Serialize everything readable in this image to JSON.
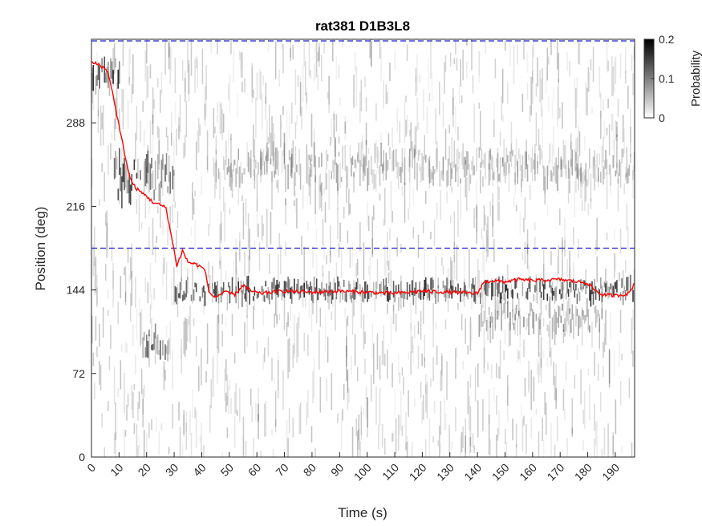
{
  "chart_data": {
    "type": "heatmap",
    "title": "rat381 D1B3L8",
    "xlabel": "Time (s)",
    "ylabel": "Position (deg)",
    "xlim": [
      0,
      197
    ],
    "ylim": [
      0,
      360
    ],
    "xticks": [
      0,
      10,
      20,
      30,
      40,
      50,
      60,
      70,
      80,
      90,
      100,
      110,
      120,
      130,
      140,
      150,
      160,
      170,
      180,
      190
    ],
    "yticks": [
      0,
      72,
      144,
      216,
      288
    ],
    "reference_lines": [
      {
        "y": 180,
        "style": "dashed",
        "color": "#1f1fd6"
      },
      {
        "y": 360,
        "style": "dashed",
        "color": "#1f1fd6"
      }
    ],
    "colorbar": {
      "label": "Probability",
      "ticks": [
        0,
        0.1,
        0.2
      ],
      "range": [
        0,
        0.2
      ],
      "colormap": "gray-reversed"
    },
    "series": [
      {
        "color": "#ff0000",
        "x": [
          0,
          3,
          6,
          8,
          10,
          12,
          14,
          16,
          18,
          20,
          22,
          24,
          27,
          29,
          31,
          33,
          35,
          38,
          41,
          43,
          45,
          48,
          52,
          55,
          58,
          61,
          65,
          70,
          80,
          90,
          100,
          110,
          120,
          130,
          140,
          142,
          145,
          150,
          155,
          160,
          170,
          180,
          182,
          185,
          190,
          195,
          197
        ],
        "y": [
          340,
          338,
          332,
          310,
          285,
          262,
          240,
          232,
          228,
          225,
          220,
          218,
          215,
          190,
          165,
          178,
          168,
          166,
          162,
          140,
          138,
          142,
          140,
          148,
          143,
          141,
          142,
          143,
          142,
          143,
          142,
          141,
          143,
          142,
          141,
          150,
          152,
          151,
          153,
          152,
          153,
          150,
          145,
          140,
          139,
          141,
          150
        ]
      }
    ],
    "heat_bands": [
      {
        "t0": 0,
        "t1": 10,
        "center": 330,
        "spread": 25,
        "intensity": 0.9
      },
      {
        "t0": 8,
        "t1": 30,
        "center": 240,
        "spread": 30,
        "intensity": 0.8
      },
      {
        "t0": 18,
        "t1": 28,
        "center": 100,
        "spread": 20,
        "intensity": 0.7
      },
      {
        "t0": 30,
        "t1": 197,
        "center": 143,
        "spread": 14,
        "intensity": 0.85
      },
      {
        "t0": 45,
        "t1": 197,
        "center": 250,
        "spread": 25,
        "intensity": 0.35
      },
      {
        "t0": 140,
        "t1": 185,
        "center": 120,
        "spread": 20,
        "intensity": 0.45
      }
    ]
  }
}
